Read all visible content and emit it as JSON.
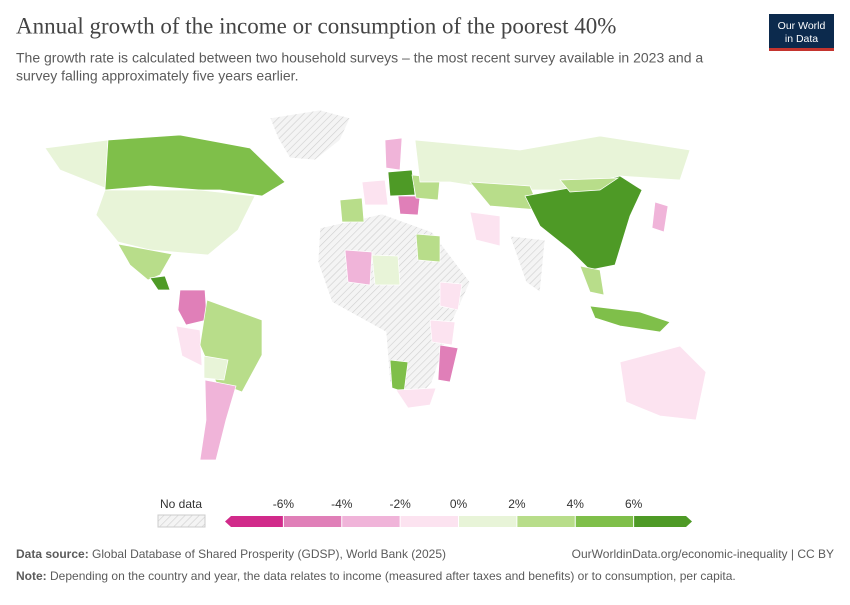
{
  "header": {
    "title": "Annual growth of the income or consumption of the poorest 40%",
    "subtitle_line1": "The growth rate is calculated between two household surveys – the most recent survey available in 2023 and a",
    "subtitle_line2": "survey falling approximately five years earlier.",
    "logo_line1": "Our World",
    "logo_line2": "in Data"
  },
  "legend": {
    "no_data_label": "No data",
    "xlim": [
      -8,
      8
    ],
    "ticks": [
      {
        "value": -6,
        "label": "-6%"
      },
      {
        "value": -4,
        "label": "-4%"
      },
      {
        "value": -2,
        "label": "-2%"
      },
      {
        "value": 0,
        "label": "0%"
      },
      {
        "value": 2,
        "label": "2%"
      },
      {
        "value": 4,
        "label": "4%"
      },
      {
        "value": 6,
        "label": "6%"
      }
    ],
    "colors": [
      "#d12a8a",
      "#e07fb8",
      "#f0b4d9",
      "#fce3f0",
      "#e8f4d8",
      "#b8dd8a",
      "#7fbf4a",
      "#4e9a26"
    ]
  },
  "footer": {
    "source_label": "Data source:",
    "source": "Global Database of Shared Prosperity (GDSP), World Bank (2025)",
    "url": "OurWorldinData.org/economic-inequality | CC BY",
    "note_label": "Note:",
    "note": "Depending on the country and year, the data relates to income (measured after taxes and benefits) or to consumption, per capita."
  }
}
